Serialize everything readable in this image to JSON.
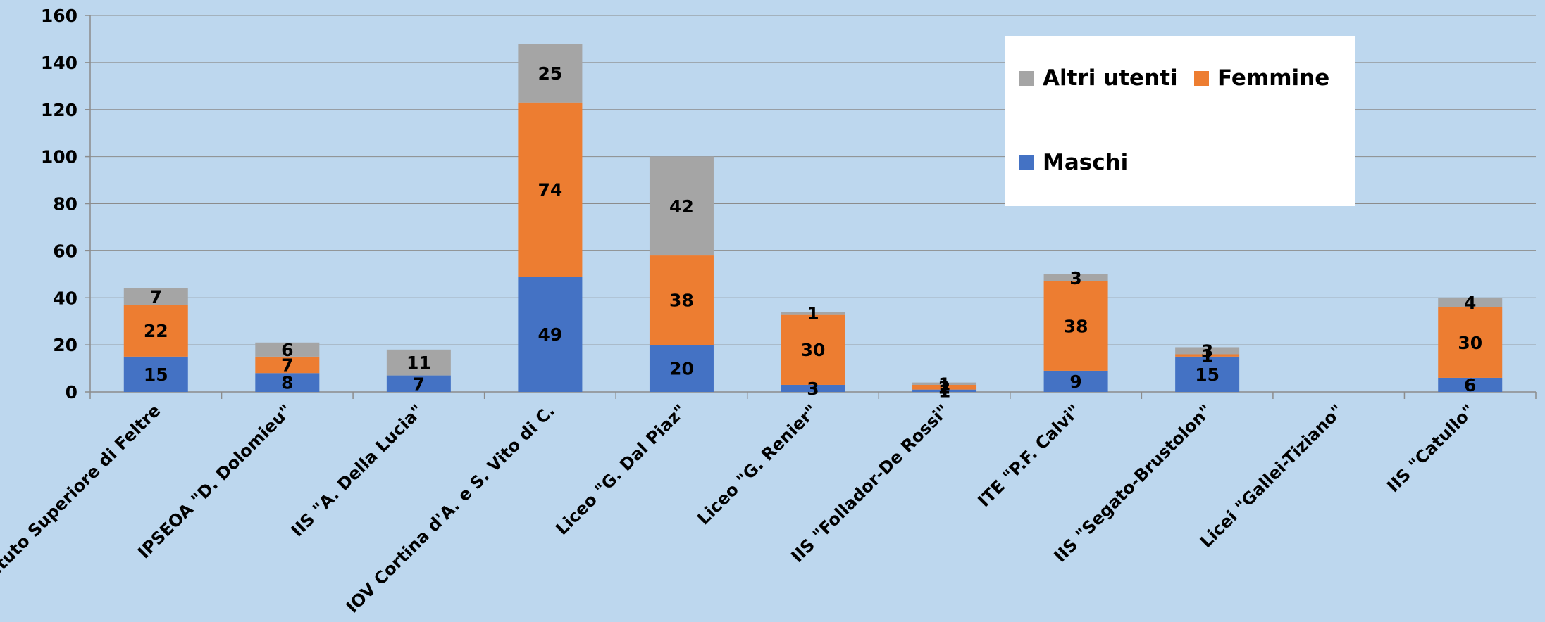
{
  "chart_data": {
    "type": "bar",
    "stacked": true,
    "title": "",
    "xlabel": "",
    "ylabel": "",
    "ylim": [
      0,
      160
    ],
    "yticks": [
      0,
      20,
      40,
      60,
      80,
      100,
      120,
      140,
      160
    ],
    "grid": true,
    "legend_position": "top-right",
    "categories": [
      "Istituto Superiore di Feltre",
      "IPSEOA \"D. Dolomieu\"",
      "IIS \"A. Della Lucia\"",
      "IOV Cortina d'A. e S. Vito di C.",
      "Liceo \"G. Dal Piaz\"",
      "Liceo  \"G. Renier\"",
      "IIS \"Follador-De Rossi\"",
      "ITE \"P.F. Calvi\"",
      "IIS \"Segato-Brustolon\"",
      "Licei \"Gallei-Tiziano\"",
      "IIS \"Catullo\""
    ],
    "series": [
      {
        "name": "Maschi",
        "color": "#4472c4",
        "values": [
          15,
          8,
          7,
          49,
          20,
          3,
          1,
          9,
          15,
          null,
          6
        ]
      },
      {
        "name": "Femmine",
        "color": "#ed7d31",
        "values": [
          22,
          7,
          null,
          74,
          38,
          30,
          2,
          38,
          1,
          null,
          30
        ]
      },
      {
        "name": "Altri utenti",
        "color": "#a5a5a5",
        "values": [
          7,
          6,
          11,
          25,
          42,
          1,
          1,
          3,
          3,
          null,
          4
        ]
      }
    ],
    "legend_order": [
      "Altri utenti",
      "Femmine",
      "Maschi"
    ]
  }
}
